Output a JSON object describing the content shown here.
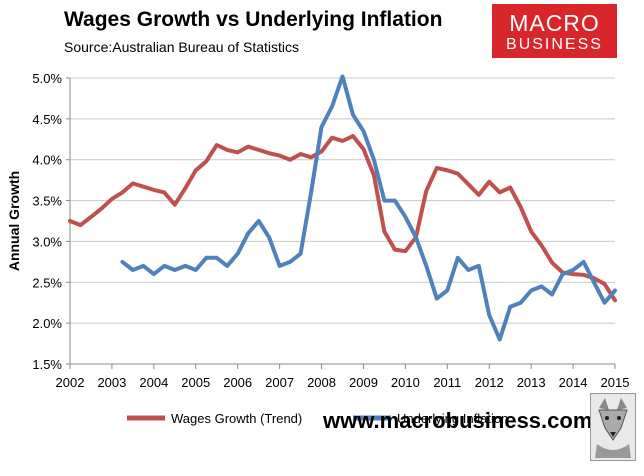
{
  "header": {
    "title": "Wages Growth vs Underlying Inflation",
    "subtitle": "Source:Australian Bureau of Statistics"
  },
  "logo": {
    "line1": "MACRO",
    "line2": "BUSINESS",
    "color": "#d9262b"
  },
  "footer": {
    "url": "www.macrobusiness.com.au"
  },
  "chart_data": {
    "type": "line",
    "title": "Wages Growth vs Underlying Inflation",
    "xlabel": "",
    "ylabel": "Annual Growth",
    "xlim": [
      2002,
      2015
    ],
    "ylim": [
      1.5,
      5.0
    ],
    "x_ticks": [
      2002,
      2003,
      2004,
      2005,
      2006,
      2007,
      2008,
      2009,
      2010,
      2011,
      2012,
      2013,
      2014,
      2015
    ],
    "x_tick_labels": [
      "2002",
      "2003",
      "2004",
      "2005",
      "2006",
      "2007",
      "2008",
      "2009",
      "2010",
      "2011",
      "2012",
      "2013",
      "2014",
      "2015"
    ],
    "y_ticks": [
      1.5,
      2.0,
      2.5,
      3.0,
      3.5,
      4.0,
      4.5,
      5.0
    ],
    "y_tick_labels": [
      "1.5%",
      "2.0%",
      "2.5%",
      "3.0%",
      "3.5%",
      "4.0%",
      "4.5%",
      "5.0%"
    ],
    "grid": "horizontal",
    "legend_position": "bottom",
    "series": [
      {
        "name": "Wages Growth (Trend)",
        "color": "#c0504d",
        "x": [
          2002.0,
          2002.25,
          2002.5,
          2002.75,
          2003.0,
          2003.25,
          2003.5,
          2003.75,
          2004.0,
          2004.25,
          2004.5,
          2004.75,
          2005.0,
          2005.25,
          2005.5,
          2005.75,
          2006.0,
          2006.25,
          2006.5,
          2006.75,
          2007.0,
          2007.25,
          2007.5,
          2007.75,
          2008.0,
          2008.25,
          2008.5,
          2008.75,
          2009.0,
          2009.25,
          2009.5,
          2009.75,
          2010.0,
          2010.25,
          2010.5,
          2010.75,
          2011.0,
          2011.25,
          2011.5,
          2011.75,
          2012.0,
          2012.25,
          2012.5,
          2012.75,
          2013.0,
          2013.25,
          2013.5,
          2013.75,
          2014.0,
          2014.25,
          2014.5,
          2014.75,
          2015.0
        ],
        "values": [
          3.25,
          3.2,
          3.3,
          3.4,
          3.52,
          3.6,
          3.71,
          3.67,
          3.63,
          3.6,
          3.45,
          3.65,
          3.87,
          3.98,
          4.18,
          4.12,
          4.09,
          4.16,
          4.12,
          4.08,
          4.05,
          4.0,
          4.07,
          4.03,
          4.1,
          4.27,
          4.23,
          4.29,
          4.13,
          3.81,
          3.12,
          2.9,
          2.88,
          3.05,
          3.62,
          3.9,
          3.87,
          3.83,
          3.7,
          3.57,
          3.73,
          3.6,
          3.66,
          3.42,
          3.12,
          2.95,
          2.74,
          2.62,
          2.6,
          2.59,
          2.55,
          2.48,
          2.28
        ]
      },
      {
        "name": "Underlying Inflation",
        "color": "#4f81bd",
        "x": [
          2003.25,
          2003.5,
          2003.75,
          2004.0,
          2004.25,
          2004.5,
          2004.75,
          2005.0,
          2005.25,
          2005.5,
          2005.75,
          2006.0,
          2006.25,
          2006.5,
          2006.75,
          2007.0,
          2007.25,
          2007.5,
          2007.75,
          2008.0,
          2008.25,
          2008.5,
          2008.75,
          2009.0,
          2009.25,
          2009.5,
          2009.75,
          2010.0,
          2010.25,
          2010.5,
          2010.75,
          2011.0,
          2011.25,
          2011.5,
          2011.75,
          2012.0,
          2012.25,
          2012.5,
          2012.75,
          2013.0,
          2013.25,
          2013.5,
          2013.75,
          2014.0,
          2014.25,
          2014.5,
          2014.75,
          2015.0
        ],
        "values": [
          2.75,
          2.65,
          2.7,
          2.6,
          2.7,
          2.65,
          2.7,
          2.65,
          2.8,
          2.8,
          2.7,
          2.85,
          3.1,
          3.25,
          3.05,
          2.7,
          2.75,
          2.85,
          3.6,
          4.4,
          4.65,
          5.02,
          4.55,
          4.35,
          4.0,
          3.5,
          3.5,
          3.3,
          3.05,
          2.7,
          2.3,
          2.4,
          2.8,
          2.65,
          2.7,
          2.1,
          1.8,
          2.2,
          2.25,
          2.4,
          2.45,
          2.35,
          2.6,
          2.65,
          2.75,
          2.5,
          2.25,
          2.4
        ]
      }
    ]
  }
}
